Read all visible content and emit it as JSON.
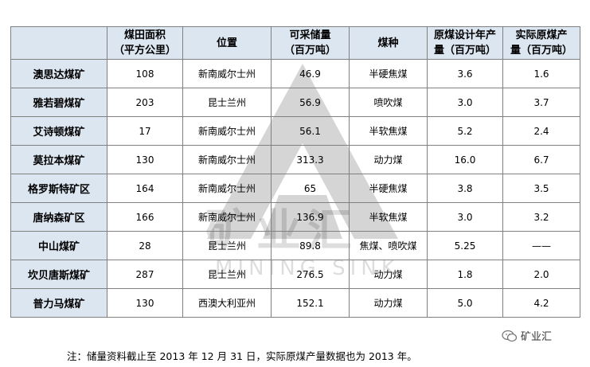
{
  "table": {
    "headers": [
      "",
      "煤田面积\n（平方公里）",
      "位置",
      "可采储量\n（百万吨）",
      "煤种",
      "原煤设计年产\n量（百万吨）",
      "实际原煤产\n量（百万吨）"
    ],
    "rows": [
      [
        "澳思达煤矿",
        "108",
        "新南威尔士州",
        "46.9",
        "半硬焦煤",
        "3.6",
        "1.6"
      ],
      [
        "雅若碧煤矿",
        "203",
        "昆士兰州",
        "56.9",
        "喷吹煤",
        "3.0",
        "3.7"
      ],
      [
        "艾诗顿煤矿",
        "17",
        "新南威尔士州",
        "56.1",
        "半软焦煤",
        "5.2",
        "2.4"
      ],
      [
        "莫拉本煤矿",
        "130",
        "新南威尔士州",
        "313.3",
        "动力煤",
        "16.0",
        "6.7"
      ],
      [
        "格罗斯特矿区",
        "164",
        "新南威尔士州",
        "65",
        "半硬焦煤",
        "3.8",
        "3.5"
      ],
      [
        "唐纳森矿区",
        "166",
        "新南威尔士州",
        "136.9",
        "半软焦煤",
        "3.0",
        "3.2"
      ],
      [
        "中山煤矿",
        "28",
        "昆士兰州",
        "89.8",
        "焦煤、喷吹煤",
        "5.25",
        "——"
      ],
      [
        "坎贝唐斯煤矿",
        "287",
        "昆士兰州",
        "276.5",
        "动力煤",
        "1.8",
        "2.0"
      ],
      [
        "普力马煤矿",
        "130",
        "西澳大利亚州",
        "152.1",
        "动力煤",
        "5.0",
        "4.2"
      ]
    ]
  },
  "note": "注：储量资料截止至 2013 年 12 月 31 日，实际原煤产量数据也为 2013 年。",
  "watermark": {
    "main": "矿业汇",
    "sub": "MINING SINK"
  },
  "brand": {
    "label": "矿业汇",
    "icon": "wechat-icon"
  }
}
